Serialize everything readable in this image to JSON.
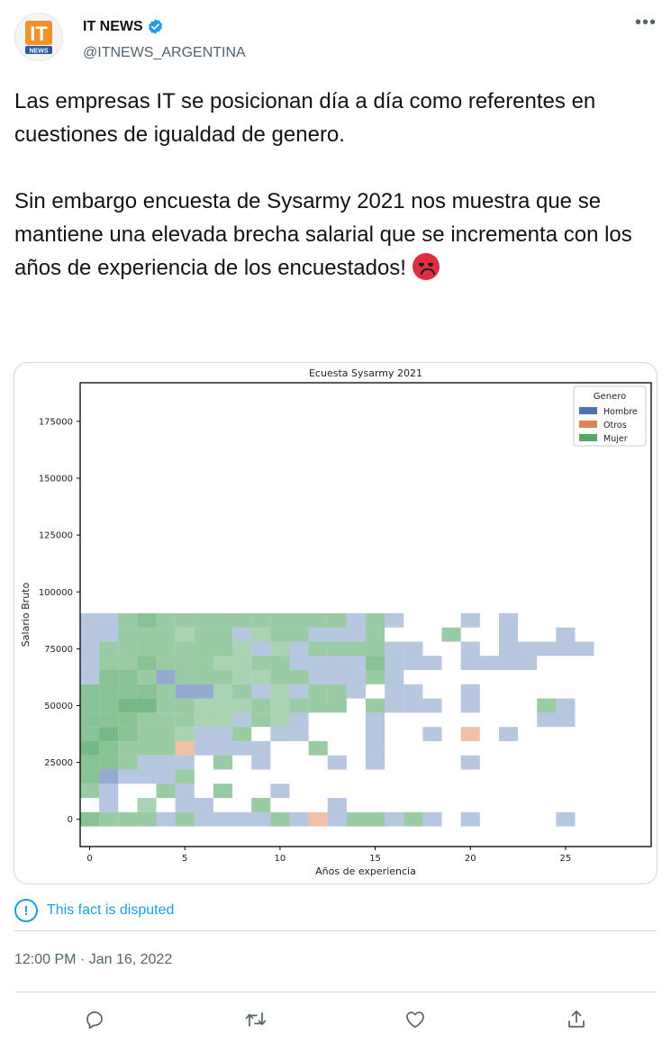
{
  "tweet": {
    "author": {
      "display_name": "IT NEWS",
      "handle": "@ITNEWS_ARGENTINA",
      "logo_text_top": "IT",
      "logo_text_bottom": "NEWS"
    },
    "text": "Las empresas IT se posicionan día a día como referentes en cuestiones de igualdad de genero.\n\nSin embargo encuesta de Sysarmy 2021 nos muestra que se mantiene una elevada brecha salarial que se incrementa con los años de experiencia de los encuestados! ",
    "emoji": "angry-face",
    "notice": "This fact is disputed",
    "timestamp": "12:00 PM · Jan 16, 2022",
    "actions": [
      "reply-icon",
      "retweet-icon",
      "like-icon",
      "share-icon"
    ],
    "colors": {
      "accent": "#1d9bf0",
      "verified": "#1d9bf0"
    }
  },
  "chart_data": {
    "type": "heatmap",
    "title": "Ecuesta Sysarmy 2021",
    "xlabel": "Años de experiencia",
    "ylabel": "Salario Bruto",
    "xlim": [
      -0.5,
      29.5
    ],
    "ylim": [
      -12000,
      192000
    ],
    "xticks": [
      0,
      5,
      10,
      15,
      20,
      25
    ],
    "yticks": [
      0,
      25000,
      50000,
      75000,
      100000,
      125000,
      150000,
      175000
    ],
    "ytick_labels": [
      "0",
      "25000",
      "50000",
      "75000",
      "100000",
      "125000",
      "150000",
      "175000"
    ],
    "bin_width_years": 1,
    "bin_height_salary": 6250,
    "legend": {
      "title": "Genero",
      "position": "top-right",
      "entries": [
        {
          "name": "Hombre",
          "color": "#4c72b0"
        },
        {
          "name": "Otros",
          "color": "#dd8452"
        },
        {
          "name": "Mujer",
          "color": "#55a868"
        }
      ]
    },
    "cells": [
      [
        0,
        0,
        "Mujer",
        0.7
      ],
      [
        1,
        0,
        "Mujer",
        0.6
      ],
      [
        2,
        0,
        "Mujer",
        0.6
      ],
      [
        3,
        0,
        "Mujer",
        0.6
      ],
      [
        4,
        0,
        "Hombre",
        0.4
      ],
      [
        5,
        0,
        "Mujer",
        0.6
      ],
      [
        6,
        0,
        "Hombre",
        0.4
      ],
      [
        7,
        0,
        "Hombre",
        0.4
      ],
      [
        8,
        0,
        "Hombre",
        0.4
      ],
      [
        9,
        0,
        "Hombre",
        0.4
      ],
      [
        10,
        0,
        "Mujer",
        0.6
      ],
      [
        11,
        0,
        "Hombre",
        0.4
      ],
      [
        12,
        0,
        "Otros",
        0.5
      ],
      [
        13,
        0,
        "Hombre",
        0.4
      ],
      [
        14,
        0,
        "Mujer",
        0.6
      ],
      [
        15,
        0,
        "Mujer",
        0.6
      ],
      [
        16,
        0,
        "Hombre",
        0.4
      ],
      [
        17,
        0,
        "Mujer",
        0.6
      ],
      [
        18,
        0,
        "Hombre",
        0.4
      ],
      [
        20,
        0,
        "Hombre",
        0.4
      ],
      [
        25,
        0,
        "Hombre",
        0.4
      ],
      [
        1,
        1,
        "Hombre",
        0.4
      ],
      [
        3,
        1,
        "Mujer",
        0.5
      ],
      [
        5,
        1,
        "Hombre",
        0.4
      ],
      [
        6,
        1,
        "Hombre",
        0.4
      ],
      [
        9,
        1,
        "Mujer",
        0.6
      ],
      [
        13,
        1,
        "Hombre",
        0.4
      ],
      [
        0,
        2,
        "Mujer",
        0.6
      ],
      [
        1,
        2,
        "Hombre",
        0.4
      ],
      [
        4,
        2,
        "Mujer",
        0.6
      ],
      [
        5,
        2,
        "Hombre",
        0.4
      ],
      [
        7,
        2,
        "Mujer",
        0.6
      ],
      [
        10,
        2,
        "Hombre",
        0.4
      ],
      [
        0,
        3,
        "Mujer",
        0.7
      ],
      [
        1,
        3,
        "Hombre",
        0.6
      ],
      [
        2,
        3,
        "Hombre",
        0.4
      ],
      [
        3,
        3,
        "Hombre",
        0.4
      ],
      [
        4,
        3,
        "Hombre",
        0.4
      ],
      [
        5,
        3,
        "Mujer",
        0.6
      ],
      [
        0,
        4,
        "Mujer",
        0.7
      ],
      [
        1,
        4,
        "Mujer",
        0.7
      ],
      [
        2,
        4,
        "Mujer",
        0.6
      ],
      [
        3,
        4,
        "Hombre",
        0.4
      ],
      [
        4,
        4,
        "Hombre",
        0.4
      ],
      [
        5,
        4,
        "Hombre",
        0.4
      ],
      [
        7,
        4,
        "Mujer",
        0.6
      ],
      [
        9,
        4,
        "Hombre",
        0.4
      ],
      [
        13,
        4,
        "Hombre",
        0.4
      ],
      [
        15,
        4,
        "Hombre",
        0.4
      ],
      [
        20,
        4,
        "Hombre",
        0.4
      ],
      [
        0,
        5,
        "Mujer",
        0.8
      ],
      [
        1,
        5,
        "Mujer",
        0.7
      ],
      [
        2,
        5,
        "Mujer",
        0.6
      ],
      [
        3,
        5,
        "Mujer",
        0.6
      ],
      [
        4,
        5,
        "Mujer",
        0.6
      ],
      [
        5,
        5,
        "Otros",
        0.5
      ],
      [
        6,
        5,
        "Hombre",
        0.4
      ],
      [
        7,
        5,
        "Hombre",
        0.4
      ],
      [
        8,
        5,
        "Hombre",
        0.4
      ],
      [
        9,
        5,
        "Hombre",
        0.4
      ],
      [
        12,
        5,
        "Mujer",
        0.6
      ],
      [
        15,
        5,
        "Hombre",
        0.4
      ],
      [
        0,
        6,
        "Mujer",
        0.7
      ],
      [
        1,
        6,
        "Mujer",
        0.8
      ],
      [
        2,
        6,
        "Mujer",
        0.7
      ],
      [
        3,
        6,
        "Mujer",
        0.6
      ],
      [
        4,
        6,
        "Mujer",
        0.6
      ],
      [
        5,
        6,
        "Mujer",
        0.5
      ],
      [
        6,
        6,
        "Hombre",
        0.4
      ],
      [
        7,
        6,
        "Hombre",
        0.4
      ],
      [
        8,
        6,
        "Mujer",
        0.6
      ],
      [
        10,
        6,
        "Hombre",
        0.4
      ],
      [
        11,
        6,
        "Hombre",
        0.4
      ],
      [
        15,
        6,
        "Hombre",
        0.4
      ],
      [
        18,
        6,
        "Hombre",
        0.4
      ],
      [
        20,
        6,
        "Otros",
        0.5
      ],
      [
        22,
        6,
        "Hombre",
        0.4
      ],
      [
        0,
        7,
        "Mujer",
        0.7
      ],
      [
        1,
        7,
        "Mujer",
        0.7
      ],
      [
        2,
        7,
        "Mujer",
        0.7
      ],
      [
        3,
        7,
        "Mujer",
        0.6
      ],
      [
        4,
        7,
        "Mujer",
        0.6
      ],
      [
        5,
        7,
        "Mujer",
        0.6
      ],
      [
        6,
        7,
        "Mujer",
        0.5
      ],
      [
        7,
        7,
        "Mujer",
        0.5
      ],
      [
        8,
        7,
        "Hombre",
        0.4
      ],
      [
        9,
        7,
        "Mujer",
        0.6
      ],
      [
        10,
        7,
        "Mujer",
        0.5
      ],
      [
        11,
        7,
        "Hombre",
        0.4
      ],
      [
        15,
        7,
        "Hombre",
        0.4
      ],
      [
        24,
        7,
        "Hombre",
        0.4
      ],
      [
        25,
        7,
        "Hombre",
        0.4
      ],
      [
        0,
        8,
        "Mujer",
        0.7
      ],
      [
        1,
        8,
        "Mujer",
        0.7
      ],
      [
        2,
        8,
        "Mujer",
        0.8
      ],
      [
        3,
        8,
        "Mujer",
        0.8
      ],
      [
        4,
        8,
        "Mujer",
        0.6
      ],
      [
        5,
        8,
        "Mujer",
        0.6
      ],
      [
        6,
        8,
        "Mujer",
        0.5
      ],
      [
        7,
        8,
        "Mujer",
        0.5
      ],
      [
        8,
        8,
        "Mujer",
        0.5
      ],
      [
        9,
        8,
        "Mujer",
        0.6
      ],
      [
        10,
        8,
        "Mujer",
        0.5
      ],
      [
        11,
        8,
        "Mujer",
        0.6
      ],
      [
        12,
        8,
        "Mujer",
        0.6
      ],
      [
        13,
        8,
        "Mujer",
        0.6
      ],
      [
        15,
        8,
        "Mujer",
        0.6
      ],
      [
        16,
        8,
        "Hombre",
        0.4
      ],
      [
        17,
        8,
        "Hombre",
        0.4
      ],
      [
        18,
        8,
        "Hombre",
        0.4
      ],
      [
        20,
        8,
        "Hombre",
        0.4
      ],
      [
        24,
        8,
        "Mujer",
        0.6
      ],
      [
        25,
        8,
        "Hombre",
        0.4
      ],
      [
        0,
        9,
        "Mujer",
        0.7
      ],
      [
        1,
        9,
        "Mujer",
        0.7
      ],
      [
        2,
        9,
        "Mujer",
        0.7
      ],
      [
        3,
        9,
        "Mujer",
        0.7
      ],
      [
        4,
        9,
        "Mujer",
        0.6
      ],
      [
        5,
        9,
        "Hombre",
        0.6
      ],
      [
        6,
        9,
        "Hombre",
        0.6
      ],
      [
        7,
        9,
        "Mujer",
        0.5
      ],
      [
        8,
        9,
        "Mujer",
        0.6
      ],
      [
        9,
        9,
        "Hombre",
        0.4
      ],
      [
        10,
        9,
        "Mujer",
        0.5
      ],
      [
        11,
        9,
        "Hombre",
        0.4
      ],
      [
        12,
        9,
        "Mujer",
        0.6
      ],
      [
        13,
        9,
        "Mujer",
        0.6
      ],
      [
        14,
        9,
        "Hombre",
        0.4
      ],
      [
        16,
        9,
        "Hombre",
        0.4
      ],
      [
        17,
        9,
        "Hombre",
        0.4
      ],
      [
        20,
        9,
        "Hombre",
        0.4
      ],
      [
        0,
        10,
        "Hombre",
        0.4
      ],
      [
        1,
        10,
        "Mujer",
        0.7
      ],
      [
        2,
        10,
        "Mujer",
        0.7
      ],
      [
        3,
        10,
        "Mujer",
        0.6
      ],
      [
        4,
        10,
        "Hombre",
        0.6
      ],
      [
        5,
        10,
        "Mujer",
        0.6
      ],
      [
        6,
        10,
        "Mujer",
        0.6
      ],
      [
        7,
        10,
        "Mujer",
        0.6
      ],
      [
        8,
        10,
        "Mujer",
        0.5
      ],
      [
        9,
        10,
        "Mujer",
        0.5
      ],
      [
        10,
        10,
        "Mujer",
        0.6
      ],
      [
        11,
        10,
        "Mujer",
        0.6
      ],
      [
        12,
        10,
        "Hombre",
        0.4
      ],
      [
        13,
        10,
        "Hombre",
        0.4
      ],
      [
        14,
        10,
        "Hombre",
        0.4
      ],
      [
        15,
        10,
        "Mujer",
        0.6
      ],
      [
        16,
        10,
        "Hombre",
        0.4
      ],
      [
        0,
        11,
        "Hombre",
        0.4
      ],
      [
        1,
        11,
        "Mujer",
        0.6
      ],
      [
        2,
        11,
        "Mujer",
        0.6
      ],
      [
        3,
        11,
        "Mujer",
        0.7
      ],
      [
        4,
        11,
        "Mujer",
        0.6
      ],
      [
        5,
        11,
        "Mujer",
        0.6
      ],
      [
        6,
        11,
        "Mujer",
        0.6
      ],
      [
        7,
        11,
        "Mujer",
        0.5
      ],
      [
        8,
        11,
        "Mujer",
        0.5
      ],
      [
        9,
        11,
        "Mujer",
        0.6
      ],
      [
        10,
        11,
        "Mujer",
        0.6
      ],
      [
        11,
        11,
        "Hombre",
        0.4
      ],
      [
        12,
        11,
        "Hombre",
        0.4
      ],
      [
        13,
        11,
        "Hombre",
        0.4
      ],
      [
        14,
        11,
        "Hombre",
        0.4
      ],
      [
        15,
        11,
        "Mujer",
        0.7
      ],
      [
        16,
        11,
        "Hombre",
        0.4
      ],
      [
        17,
        11,
        "Hombre",
        0.4
      ],
      [
        18,
        11,
        "Hombre",
        0.4
      ],
      [
        20,
        11,
        "Hombre",
        0.4
      ],
      [
        21,
        11,
        "Hombre",
        0.4
      ],
      [
        22,
        11,
        "Hombre",
        0.4
      ],
      [
        23,
        11,
        "Hombre",
        0.4
      ],
      [
        0,
        12,
        "Hombre",
        0.4
      ],
      [
        1,
        12,
        "Mujer",
        0.6
      ],
      [
        2,
        12,
        "Mujer",
        0.6
      ],
      [
        3,
        12,
        "Mujer",
        0.6
      ],
      [
        4,
        12,
        "Mujer",
        0.6
      ],
      [
        5,
        12,
        "Mujer",
        0.6
      ],
      [
        6,
        12,
        "Mujer",
        0.6
      ],
      [
        7,
        12,
        "Mujer",
        0.6
      ],
      [
        8,
        12,
        "Mujer",
        0.5
      ],
      [
        9,
        12,
        "Hombre",
        0.4
      ],
      [
        10,
        12,
        "Mujer",
        0.5
      ],
      [
        11,
        12,
        "Hombre",
        0.4
      ],
      [
        12,
        12,
        "Mujer",
        0.6
      ],
      [
        13,
        12,
        "Mujer",
        0.6
      ],
      [
        14,
        12,
        "Mujer",
        0.6
      ],
      [
        15,
        12,
        "Mujer",
        0.6
      ],
      [
        16,
        12,
        "Hombre",
        0.4
      ],
      [
        17,
        12,
        "Hombre",
        0.4
      ],
      [
        20,
        12,
        "Hombre",
        0.4
      ],
      [
        22,
        12,
        "Hombre",
        0.4
      ],
      [
        23,
        12,
        "Hombre",
        0.4
      ],
      [
        24,
        12,
        "Hombre",
        0.4
      ],
      [
        25,
        12,
        "Hombre",
        0.4
      ],
      [
        26,
        12,
        "Hombre",
        0.4
      ],
      [
        0,
        13,
        "Hombre",
        0.4
      ],
      [
        1,
        13,
        "Hombre",
        0.4
      ],
      [
        2,
        13,
        "Mujer",
        0.6
      ],
      [
        3,
        13,
        "Mujer",
        0.6
      ],
      [
        4,
        13,
        "Mujer",
        0.6
      ],
      [
        5,
        13,
        "Mujer",
        0.5
      ],
      [
        6,
        13,
        "Mujer",
        0.6
      ],
      [
        7,
        13,
        "Mujer",
        0.6
      ],
      [
        8,
        13,
        "Hombre",
        0.4
      ],
      [
        9,
        13,
        "Mujer",
        0.5
      ],
      [
        10,
        13,
        "Mujer",
        0.6
      ],
      [
        11,
        13,
        "Mujer",
        0.6
      ],
      [
        12,
        13,
        "Hombre",
        0.4
      ],
      [
        13,
        13,
        "Hombre",
        0.4
      ],
      [
        14,
        13,
        "Hombre",
        0.4
      ],
      [
        15,
        13,
        "Mujer",
        0.6
      ],
      [
        19,
        13,
        "Mujer",
        0.6
      ],
      [
        22,
        13,
        "Hombre",
        0.4
      ],
      [
        25,
        13,
        "Hombre",
        0.4
      ],
      [
        0,
        14,
        "Hombre",
        0.4
      ],
      [
        1,
        14,
        "Hombre",
        0.4
      ],
      [
        2,
        14,
        "Mujer",
        0.6
      ],
      [
        3,
        14,
        "Mujer",
        0.7
      ],
      [
        4,
        14,
        "Mujer",
        0.6
      ],
      [
        5,
        14,
        "Mujer",
        0.6
      ],
      [
        6,
        14,
        "Mujer",
        0.6
      ],
      [
        7,
        14,
        "Mujer",
        0.6
      ],
      [
        8,
        14,
        "Mujer",
        0.6
      ],
      [
        9,
        14,
        "Mujer",
        0.6
      ],
      [
        10,
        14,
        "Mujer",
        0.6
      ],
      [
        11,
        14,
        "Mujer",
        0.6
      ],
      [
        12,
        14,
        "Mujer",
        0.6
      ],
      [
        13,
        14,
        "Mujer",
        0.6
      ],
      [
        14,
        14,
        "Hombre",
        0.4
      ],
      [
        15,
        14,
        "Mujer",
        0.6
      ],
      [
        16,
        14,
        "Hombre",
        0.4
      ],
      [
        20,
        14,
        "Hombre",
        0.4
      ],
      [
        22,
        14,
        "Hombre",
        0.4
      ]
    ]
  }
}
